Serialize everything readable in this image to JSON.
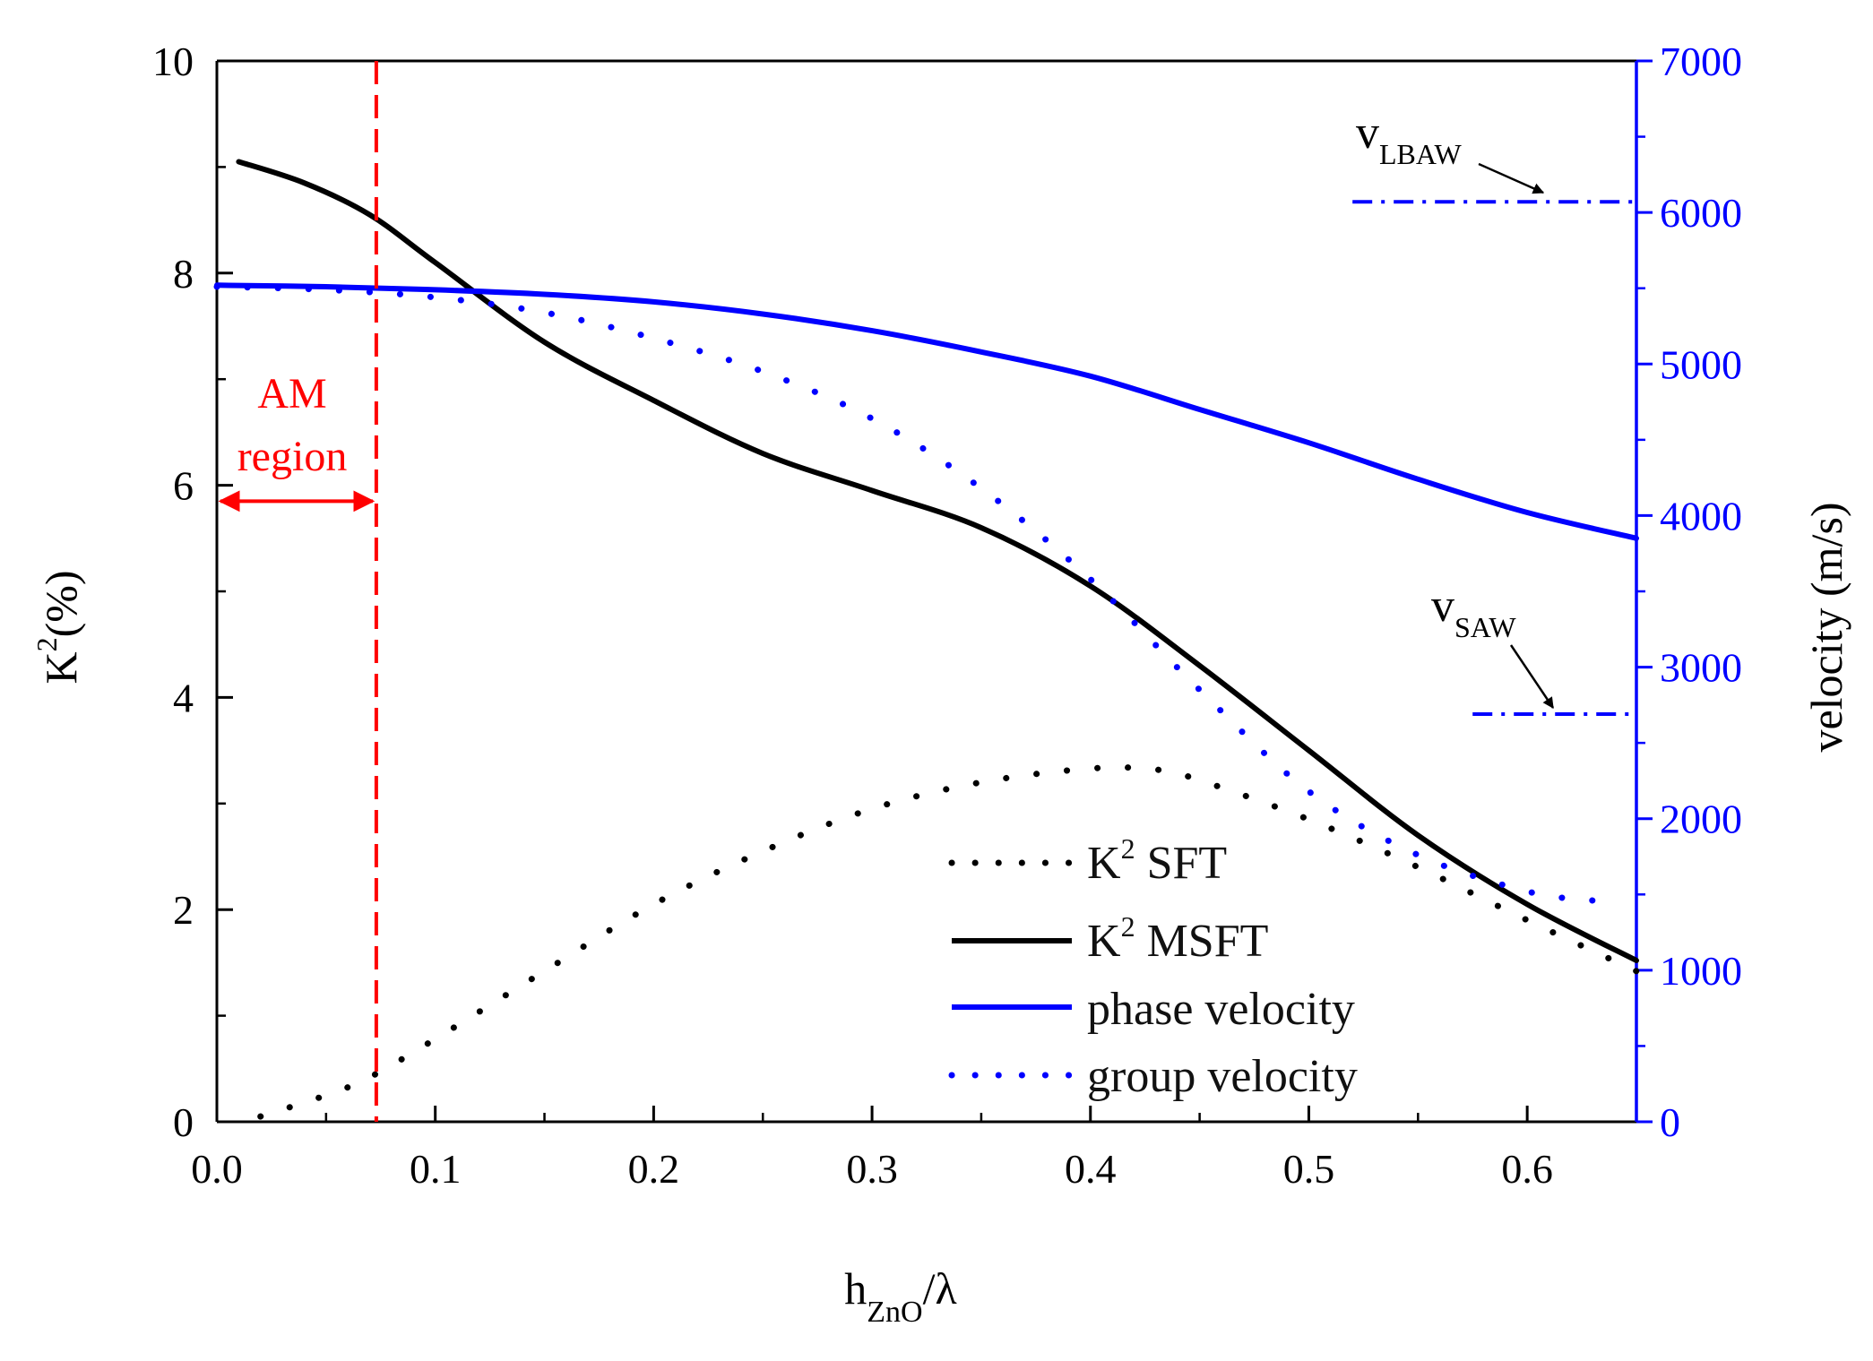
{
  "chart_data": {
    "type": "line",
    "title": "",
    "xlabel_main": "h",
    "xlabel_sub": "ZnO",
    "xlabel_tail": "/λ",
    "ylabel_left_base": "K",
    "ylabel_left_sup": "2",
    "ylabel_left_tail": "(%)",
    "ylabel_right": "velocity (m/s)",
    "xlim": [
      0,
      0.65
    ],
    "ylim_left": [
      0,
      10
    ],
    "ylim_right": [
      0,
      7000
    ],
    "x_ticks": [
      "0.0",
      "0.1",
      "0.2",
      "0.3",
      "0.4",
      "0.5",
      "0.6"
    ],
    "y_left_ticks": [
      "0",
      "2",
      "4",
      "6",
      "8",
      "10"
    ],
    "y_right_ticks": [
      "0",
      "1000",
      "2000",
      "3000",
      "4000",
      "5000",
      "6000",
      "7000"
    ],
    "colors": {
      "k2": "#000000",
      "velocity": "#0000ff",
      "am": "#ff0000"
    },
    "series": [
      {
        "name": "K² SFT",
        "axis": "left",
        "style": "dotted",
        "color": "#000000",
        "points": [
          [
            0.02,
            0.05
          ],
          [
            0.05,
            0.25
          ],
          [
            0.07,
            0.42
          ],
          [
            0.1,
            0.78
          ],
          [
            0.15,
            1.42
          ],
          [
            0.2,
            2.05
          ],
          [
            0.25,
            2.55
          ],
          [
            0.3,
            2.95
          ],
          [
            0.35,
            3.2
          ],
          [
            0.4,
            3.33
          ],
          [
            0.43,
            3.32
          ],
          [
            0.45,
            3.22
          ],
          [
            0.5,
            2.85
          ],
          [
            0.55,
            2.4
          ],
          [
            0.6,
            1.9
          ],
          [
            0.65,
            1.42
          ]
        ]
      },
      {
        "name": "K² MSFT",
        "axis": "left",
        "style": "solid",
        "color": "#000000",
        "points": [
          [
            0.01,
            9.05
          ],
          [
            0.04,
            8.85
          ],
          [
            0.07,
            8.55
          ],
          [
            0.1,
            8.1
          ],
          [
            0.15,
            7.35
          ],
          [
            0.2,
            6.8
          ],
          [
            0.25,
            6.3
          ],
          [
            0.3,
            5.95
          ],
          [
            0.35,
            5.6
          ],
          [
            0.4,
            5.05
          ],
          [
            0.45,
            4.3
          ],
          [
            0.5,
            3.5
          ],
          [
            0.55,
            2.7
          ],
          [
            0.6,
            2.05
          ],
          [
            0.65,
            1.52
          ]
        ]
      },
      {
        "name": "phase velocity",
        "axis": "right",
        "style": "solid",
        "color": "#0000ff",
        "points": [
          [
            0.0,
            5520
          ],
          [
            0.05,
            5510
          ],
          [
            0.1,
            5490
          ],
          [
            0.15,
            5460
          ],
          [
            0.2,
            5410
          ],
          [
            0.25,
            5330
          ],
          [
            0.3,
            5220
          ],
          [
            0.35,
            5080
          ],
          [
            0.4,
            4920
          ],
          [
            0.45,
            4700
          ],
          [
            0.5,
            4480
          ],
          [
            0.55,
            4240
          ],
          [
            0.6,
            4020
          ],
          [
            0.65,
            3850
          ]
        ]
      },
      {
        "name": "group velocity",
        "axis": "right",
        "style": "dotted",
        "color": "#0000ff",
        "points": [
          [
            0.0,
            5510
          ],
          [
            0.05,
            5490
          ],
          [
            0.1,
            5440
          ],
          [
            0.15,
            5340
          ],
          [
            0.2,
            5170
          ],
          [
            0.25,
            4950
          ],
          [
            0.3,
            4640
          ],
          [
            0.35,
            4180
          ],
          [
            0.4,
            3580
          ],
          [
            0.45,
            2850
          ],
          [
            0.5,
            2180
          ],
          [
            0.55,
            1760
          ],
          [
            0.6,
            1520
          ],
          [
            0.63,
            1460
          ]
        ]
      }
    ],
    "reference_lines": [
      {
        "name": "vLBAW",
        "value": 6070,
        "x_range": [
          0.52,
          0.65
        ],
        "style": "dashdot"
      },
      {
        "name": "vSAW",
        "value": 2690,
        "x_range": [
          0.575,
          0.65
        ],
        "style": "dashdot"
      }
    ],
    "am_line_x": 0.073,
    "am_arrow_y": 5.85,
    "legend": {
      "placement": "bottom-right",
      "entries": [
        {
          "label_sup": "2",
          "label_tail": " SFT",
          "label_base": "K",
          "style": "dotted",
          "color": "#000000"
        },
        {
          "label_sup": "2",
          "label_tail": " MSFT",
          "label_base": "K",
          "style": "solid",
          "color": "#000000"
        },
        {
          "label_sup": "",
          "label_tail": "",
          "label_base": "phase velocity",
          "style": "solid",
          "color": "#0000ff"
        },
        {
          "label_sup": "",
          "label_tail": "",
          "label_base": "group velocity",
          "style": "dotted",
          "color": "#0000ff"
        }
      ]
    },
    "annotations": {
      "am_line1": "AM",
      "am_line2": "region",
      "vlbaw_base": "v",
      "vlbaw_sub": "LBAW",
      "vsaw_base": "v",
      "vsaw_sub": "SAW"
    }
  }
}
